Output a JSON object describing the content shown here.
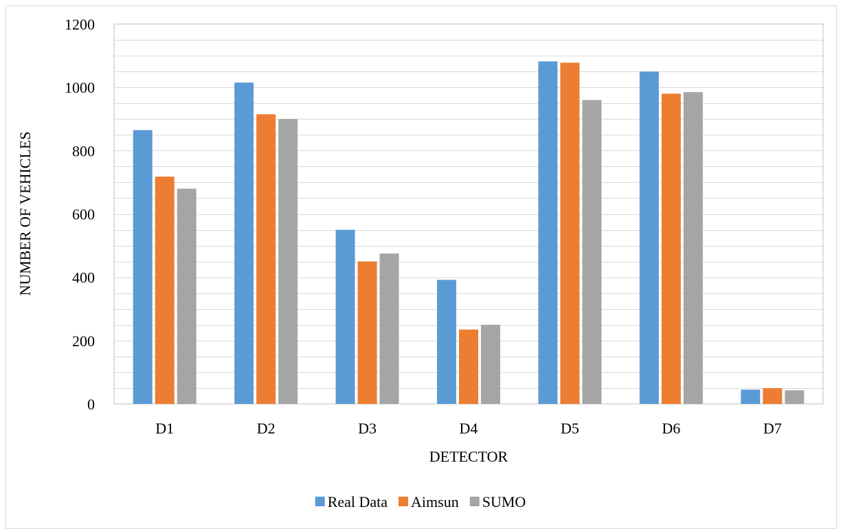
{
  "chart_data": {
    "type": "bar",
    "categories": [
      "D1",
      "D2",
      "D3",
      "D4",
      "D5",
      "D6",
      "D7"
    ],
    "series": [
      {
        "name": "Real Data",
        "color": "#5b9bd5",
        "values": [
          865,
          1015,
          550,
          392,
          1082,
          1050,
          45
        ]
      },
      {
        "name": "Aimsun",
        "color": "#ed7d31",
        "values": [
          718,
          915,
          450,
          235,
          1078,
          980,
          50
        ]
      },
      {
        "name": "SUMO",
        "color": "#a5a5a5",
        "values": [
          680,
          900,
          475,
          250,
          960,
          985,
          43
        ]
      }
    ],
    "xlabel": "DETECTOR",
    "ylabel": "NUMBER  OF VEHICLES",
    "ylim": [
      0,
      1200
    ],
    "yticks": [
      0,
      200,
      400,
      600,
      800,
      1000,
      1200
    ],
    "minor_grid_step": 50,
    "grid": true,
    "legend_position": "bottom",
    "grid_color": "#d9d9d9",
    "plot_border_color": "#bfbfbf"
  }
}
